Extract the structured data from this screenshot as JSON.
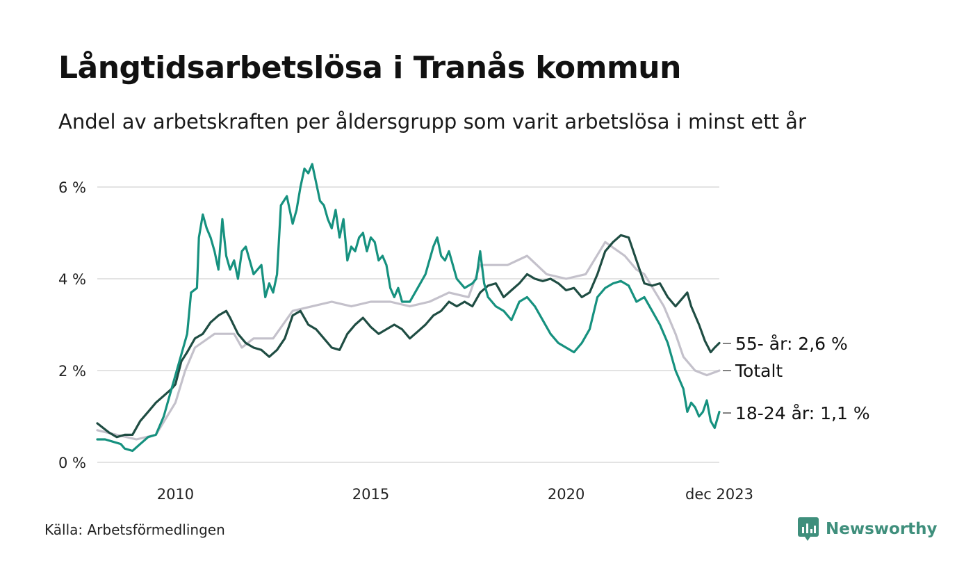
{
  "title": "Långtidsarbetslösa i Tranås kommun",
  "subtitle": "Andel av arbetskraften per åldersgrupp som varit arbetslösa i minst ett år",
  "source": "Källa: Arbetsförmedlingen",
  "brand": "Newsworthy",
  "colors": {
    "age_55": "#1f4d43",
    "total": "#c4c1cb",
    "age_18_24": "#16917f",
    "grid": "#e3e3e3",
    "brand": "#3f8f7c"
  },
  "chart_data": {
    "type": "line",
    "title": "Långtidsarbetslösa i Tranås kommun",
    "xlabel": "",
    "ylabel": "",
    "x_ticks": [
      "2010",
      "2015",
      "2020",
      "dec 2023"
    ],
    "y_ticks": [
      "0 %",
      "2 %",
      "4 %",
      "6 %"
    ],
    "ylim": [
      0,
      6.8
    ],
    "xlim": [
      2008.0,
      2023.92
    ],
    "series": [
      {
        "name": "Totalt",
        "label": "Totalt",
        "color": "#c4c1cb",
        "points": [
          [
            2008.0,
            0.7
          ],
          [
            2008.5,
            0.6
          ],
          [
            2009.0,
            0.5
          ],
          [
            2009.5,
            0.6
          ],
          [
            2010.0,
            1.3
          ],
          [
            2010.25,
            2.0
          ],
          [
            2010.5,
            2.5
          ],
          [
            2011.0,
            2.8
          ],
          [
            2011.5,
            2.8
          ],
          [
            2011.7,
            2.5
          ],
          [
            2012.0,
            2.7
          ],
          [
            2012.5,
            2.7
          ],
          [
            2013.0,
            3.3
          ],
          [
            2013.5,
            3.4
          ],
          [
            2014.0,
            3.5
          ],
          [
            2014.5,
            3.4
          ],
          [
            2015.0,
            3.5
          ],
          [
            2015.5,
            3.5
          ],
          [
            2016.0,
            3.4
          ],
          [
            2016.5,
            3.5
          ],
          [
            2017.0,
            3.7
          ],
          [
            2017.5,
            3.6
          ],
          [
            2017.8,
            4.3
          ],
          [
            2018.5,
            4.3
          ],
          [
            2019.0,
            4.5
          ],
          [
            2019.5,
            4.1
          ],
          [
            2020.0,
            4.0
          ],
          [
            2020.5,
            4.1
          ],
          [
            2021.0,
            4.8
          ],
          [
            2021.5,
            4.5
          ],
          [
            2021.8,
            4.2
          ],
          [
            2022.0,
            4.1
          ],
          [
            2022.5,
            3.4
          ],
          [
            2022.8,
            2.8
          ],
          [
            2023.0,
            2.3
          ],
          [
            2023.3,
            2.0
          ],
          [
            2023.6,
            1.9
          ],
          [
            2023.92,
            2.0
          ]
        ]
      },
      {
        "name": "55- år",
        "label": "55- år: 2,6 %",
        "color": "#1f4d43",
        "points": [
          [
            2008.0,
            0.85
          ],
          [
            2008.15,
            0.75
          ],
          [
            2008.3,
            0.65
          ],
          [
            2008.5,
            0.55
          ],
          [
            2008.7,
            0.6
          ],
          [
            2008.9,
            0.6
          ],
          [
            2009.1,
            0.9
          ],
          [
            2009.3,
            1.1
          ],
          [
            2009.5,
            1.3
          ],
          [
            2009.7,
            1.45
          ],
          [
            2009.9,
            1.6
          ],
          [
            2010.0,
            1.7
          ],
          [
            2010.15,
            2.2
          ],
          [
            2010.3,
            2.4
          ],
          [
            2010.5,
            2.7
          ],
          [
            2010.7,
            2.8
          ],
          [
            2010.9,
            3.05
          ],
          [
            2011.1,
            3.2
          ],
          [
            2011.3,
            3.3
          ],
          [
            2011.4,
            3.15
          ],
          [
            2011.6,
            2.8
          ],
          [
            2011.8,
            2.6
          ],
          [
            2012.0,
            2.5
          ],
          [
            2012.2,
            2.45
          ],
          [
            2012.4,
            2.3
          ],
          [
            2012.6,
            2.45
          ],
          [
            2012.8,
            2.7
          ],
          [
            2013.0,
            3.2
          ],
          [
            2013.2,
            3.3
          ],
          [
            2013.4,
            3.0
          ],
          [
            2013.6,
            2.9
          ],
          [
            2013.8,
            2.7
          ],
          [
            2014.0,
            2.5
          ],
          [
            2014.2,
            2.45
          ],
          [
            2014.4,
            2.8
          ],
          [
            2014.6,
            3.0
          ],
          [
            2014.8,
            3.15
          ],
          [
            2015.0,
            2.95
          ],
          [
            2015.2,
            2.8
          ],
          [
            2015.4,
            2.9
          ],
          [
            2015.6,
            3.0
          ],
          [
            2015.8,
            2.9
          ],
          [
            2016.0,
            2.7
          ],
          [
            2016.2,
            2.85
          ],
          [
            2016.4,
            3.0
          ],
          [
            2016.6,
            3.2
          ],
          [
            2016.8,
            3.3
          ],
          [
            2017.0,
            3.5
          ],
          [
            2017.2,
            3.4
          ],
          [
            2017.4,
            3.5
          ],
          [
            2017.6,
            3.4
          ],
          [
            2017.8,
            3.7
          ],
          [
            2018.0,
            3.85
          ],
          [
            2018.2,
            3.9
          ],
          [
            2018.4,
            3.6
          ],
          [
            2018.6,
            3.75
          ],
          [
            2018.8,
            3.9
          ],
          [
            2019.0,
            4.1
          ],
          [
            2019.2,
            4.0
          ],
          [
            2019.4,
            3.95
          ],
          [
            2019.6,
            4.0
          ],
          [
            2019.8,
            3.9
          ],
          [
            2020.0,
            3.75
          ],
          [
            2020.2,
            3.8
          ],
          [
            2020.4,
            3.6
          ],
          [
            2020.6,
            3.7
          ],
          [
            2020.8,
            4.1
          ],
          [
            2021.0,
            4.6
          ],
          [
            2021.2,
            4.8
          ],
          [
            2021.4,
            4.95
          ],
          [
            2021.6,
            4.9
          ],
          [
            2021.8,
            4.4
          ],
          [
            2022.0,
            3.9
          ],
          [
            2022.2,
            3.85
          ],
          [
            2022.4,
            3.9
          ],
          [
            2022.6,
            3.6
          ],
          [
            2022.8,
            3.4
          ],
          [
            2023.0,
            3.6
          ],
          [
            2023.1,
            3.7
          ],
          [
            2023.2,
            3.4
          ],
          [
            2023.4,
            3.0
          ],
          [
            2023.55,
            2.65
          ],
          [
            2023.7,
            2.4
          ],
          [
            2023.8,
            2.5
          ],
          [
            2023.92,
            2.6
          ]
        ]
      },
      {
        "name": "18-24 år",
        "label": "18-24 år: 1,1 %",
        "color": "#16917f",
        "points": [
          [
            2008.0,
            0.5
          ],
          [
            2008.2,
            0.5
          ],
          [
            2008.4,
            0.45
          ],
          [
            2008.6,
            0.4
          ],
          [
            2008.7,
            0.3
          ],
          [
            2008.9,
            0.25
          ],
          [
            2009.1,
            0.4
          ],
          [
            2009.3,
            0.55
          ],
          [
            2009.5,
            0.6
          ],
          [
            2009.7,
            1.0
          ],
          [
            2009.9,
            1.6
          ],
          [
            2010.1,
            2.2
          ],
          [
            2010.3,
            2.8
          ],
          [
            2010.4,
            3.7
          ],
          [
            2010.55,
            3.8
          ],
          [
            2010.6,
            4.9
          ],
          [
            2010.7,
            5.4
          ],
          [
            2010.8,
            5.1
          ],
          [
            2010.9,
            4.9
          ],
          [
            2011.0,
            4.6
          ],
          [
            2011.1,
            4.2
          ],
          [
            2011.2,
            5.3
          ],
          [
            2011.3,
            4.5
          ],
          [
            2011.4,
            4.2
          ],
          [
            2011.5,
            4.4
          ],
          [
            2011.6,
            4.0
          ],
          [
            2011.7,
            4.6
          ],
          [
            2011.8,
            4.7
          ],
          [
            2011.9,
            4.4
          ],
          [
            2012.0,
            4.1
          ],
          [
            2012.2,
            4.3
          ],
          [
            2012.3,
            3.6
          ],
          [
            2012.4,
            3.9
          ],
          [
            2012.5,
            3.7
          ],
          [
            2012.6,
            4.1
          ],
          [
            2012.7,
            5.6
          ],
          [
            2012.85,
            5.8
          ],
          [
            2013.0,
            5.2
          ],
          [
            2013.1,
            5.5
          ],
          [
            2013.2,
            6.0
          ],
          [
            2013.3,
            6.4
          ],
          [
            2013.4,
            6.3
          ],
          [
            2013.5,
            6.5
          ],
          [
            2013.6,
            6.1
          ],
          [
            2013.7,
            5.7
          ],
          [
            2013.8,
            5.6
          ],
          [
            2013.9,
            5.3
          ],
          [
            2014.0,
            5.1
          ],
          [
            2014.1,
            5.5
          ],
          [
            2014.2,
            4.9
          ],
          [
            2014.3,
            5.3
          ],
          [
            2014.4,
            4.4
          ],
          [
            2014.5,
            4.7
          ],
          [
            2014.6,
            4.6
          ],
          [
            2014.7,
            4.9
          ],
          [
            2014.8,
            5.0
          ],
          [
            2014.9,
            4.6
          ],
          [
            2015.0,
            4.9
          ],
          [
            2015.1,
            4.8
          ],
          [
            2015.2,
            4.4
          ],
          [
            2015.3,
            4.5
          ],
          [
            2015.4,
            4.3
          ],
          [
            2015.5,
            3.8
          ],
          [
            2015.6,
            3.6
          ],
          [
            2015.7,
            3.8
          ],
          [
            2015.8,
            3.5
          ],
          [
            2016.0,
            3.5
          ],
          [
            2016.2,
            3.8
          ],
          [
            2016.4,
            4.1
          ],
          [
            2016.6,
            4.7
          ],
          [
            2016.7,
            4.9
          ],
          [
            2016.8,
            4.5
          ],
          [
            2016.9,
            4.4
          ],
          [
            2017.0,
            4.6
          ],
          [
            2017.2,
            4.0
          ],
          [
            2017.4,
            3.8
          ],
          [
            2017.6,
            3.9
          ],
          [
            2017.7,
            4.0
          ],
          [
            2017.8,
            4.6
          ],
          [
            2017.9,
            3.9
          ],
          [
            2018.0,
            3.6
          ],
          [
            2018.2,
            3.4
          ],
          [
            2018.4,
            3.3
          ],
          [
            2018.6,
            3.1
          ],
          [
            2018.8,
            3.5
          ],
          [
            2019.0,
            3.6
          ],
          [
            2019.2,
            3.4
          ],
          [
            2019.4,
            3.1
          ],
          [
            2019.6,
            2.8
          ],
          [
            2019.8,
            2.6
          ],
          [
            2020.0,
            2.5
          ],
          [
            2020.2,
            2.4
          ],
          [
            2020.4,
            2.6
          ],
          [
            2020.6,
            2.9
          ],
          [
            2020.8,
            3.6
          ],
          [
            2021.0,
            3.8
          ],
          [
            2021.2,
            3.9
          ],
          [
            2021.4,
            3.95
          ],
          [
            2021.6,
            3.85
          ],
          [
            2021.8,
            3.5
          ],
          [
            2022.0,
            3.6
          ],
          [
            2022.2,
            3.3
          ],
          [
            2022.4,
            3.0
          ],
          [
            2022.6,
            2.6
          ],
          [
            2022.8,
            2.0
          ],
          [
            2023.0,
            1.6
          ],
          [
            2023.1,
            1.1
          ],
          [
            2023.2,
            1.3
          ],
          [
            2023.3,
            1.2
          ],
          [
            2023.4,
            1.0
          ],
          [
            2023.5,
            1.1
          ],
          [
            2023.6,
            1.35
          ],
          [
            2023.7,
            0.9
          ],
          [
            2023.8,
            0.75
          ],
          [
            2023.92,
            1.1
          ]
        ]
      }
    ]
  }
}
